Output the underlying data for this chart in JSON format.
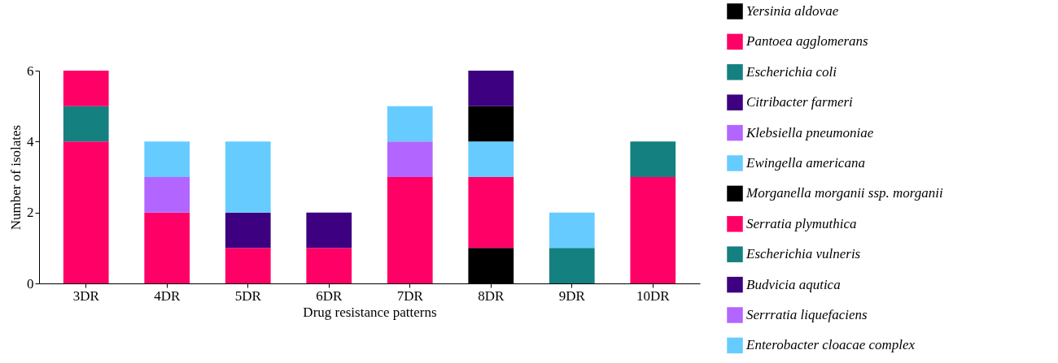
{
  "chart_data": {
    "type": "bar",
    "stacked": true,
    "xlabel": "Drug resistance patterns",
    "ylabel": "Number of isolates",
    "categories": [
      "3DR",
      "4DR",
      "5DR",
      "6DR",
      "7DR",
      "8DR",
      "9DR",
      "10DR"
    ],
    "ylim": [
      0,
      6
    ],
    "yticks": [
      0,
      2,
      4,
      6
    ],
    "grid": false,
    "legend": "right",
    "series": [
      {
        "name": "Yersinia aldovae",
        "color": "#000000",
        "values": [
          null,
          null,
          null,
          null,
          null,
          1,
          null,
          null
        ]
      },
      {
        "name": "Pantoea agglomerans",
        "color": "#ff0066",
        "values": [
          4,
          2,
          1,
          null,
          null,
          2,
          null,
          null
        ]
      },
      {
        "name": "Escherichia coli",
        "color": "#148080",
        "values": [
          1,
          null,
          null,
          null,
          null,
          null,
          null,
          null
        ]
      },
      {
        "name": "Citribacter farmeri",
        "color": "#3d0080",
        "values": [
          null,
          null,
          1,
          null,
          null,
          null,
          null,
          null
        ]
      },
      {
        "name": "Klebsiella pneumoniae",
        "color": "#b266ff",
        "values": [
          null,
          1,
          null,
          null,
          null,
          null,
          null,
          null
        ]
      },
      {
        "name": "Ewingella americana",
        "color": "#66ccff",
        "values": [
          null,
          1,
          2,
          null,
          null,
          1,
          null,
          null
        ]
      },
      {
        "name": "Morganella morganii ssp. morganii",
        "color": "#000000",
        "values": [
          null,
          null,
          null,
          null,
          null,
          1,
          null,
          null
        ]
      },
      {
        "name": "Serratia plymuthica",
        "color": "#ff0066",
        "values": [
          1,
          null,
          null,
          1,
          3,
          null,
          null,
          3
        ]
      },
      {
        "name": "Escherichia vulneris",
        "color": "#148080",
        "values": [
          null,
          null,
          null,
          null,
          null,
          null,
          1,
          1
        ]
      },
      {
        "name": "Budvicia aqutica",
        "color": "#3d0080",
        "values": [
          null,
          null,
          null,
          1,
          null,
          1,
          null,
          null
        ]
      },
      {
        "name": "Serrratia liquefaciens",
        "color": "#b266ff",
        "values": [
          null,
          null,
          null,
          null,
          1,
          null,
          null,
          null
        ]
      },
      {
        "name": "Enterobacter cloacae complex",
        "color": "#66ccff",
        "values": [
          null,
          null,
          null,
          null,
          1,
          null,
          1,
          null
        ]
      }
    ]
  }
}
